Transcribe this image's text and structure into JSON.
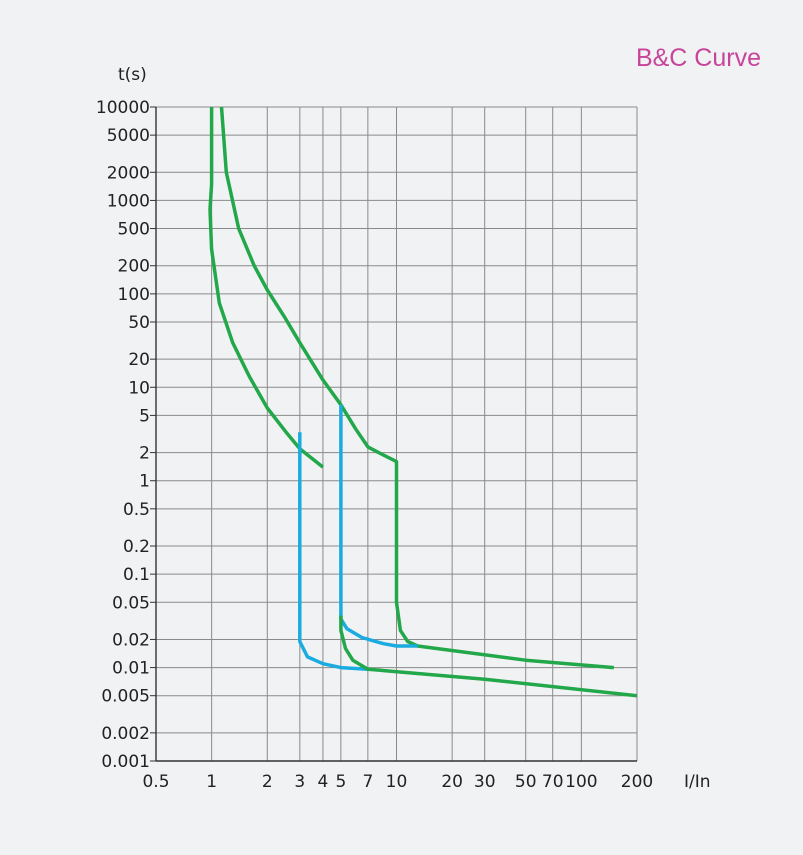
{
  "chart_data": {
    "type": "line",
    "title": "B&C Curve",
    "xlabel": "I/In",
    "ylabel": "t(s)",
    "x_scale": "log",
    "y_scale": "log",
    "xlim": [
      0.5,
      200
    ],
    "ylim": [
      0.001,
      10000
    ],
    "grid": true,
    "legend": "none",
    "x_ticks": [
      0.5,
      1,
      2,
      3,
      4,
      5,
      7,
      10,
      20,
      30,
      50,
      70,
      100,
      200
    ],
    "x_tick_labels": [
      "0.5",
      "1",
      "2",
      "3",
      "4",
      "5",
      "7",
      "10",
      "20",
      "30",
      "50",
      "70",
      "100",
      "200"
    ],
    "y_ticks": [
      10000,
      5000,
      2000,
      1000,
      500,
      200,
      100,
      50,
      20,
      10,
      5,
      2,
      1,
      0.5,
      0.2,
      0.1,
      0.05,
      0.02,
      0.01,
      0.005,
      0.002,
      0.001
    ],
    "y_tick_labels": [
      "10000",
      "5000",
      "2000",
      "1000",
      "500",
      "200",
      "100",
      "50",
      "20",
      "10",
      "5",
      "2",
      "1",
      "0.5",
      "0.2",
      "0.1",
      "0.05",
      "0.02",
      "0.01",
      "0.005",
      "0.002",
      "0.001"
    ],
    "series": [
      {
        "color": "#22a84a",
        "points": [
          [
            1.0,
            10000
          ],
          [
            1.0,
            1500
          ],
          [
            0.98,
            800
          ],
          [
            1.0,
            300
          ],
          [
            1.1,
            80
          ],
          [
            1.3,
            30
          ],
          [
            1.6,
            13
          ],
          [
            2.0,
            6
          ],
          [
            2.5,
            3.4
          ],
          [
            3.0,
            2.2
          ],
          [
            4.0,
            1.4
          ]
        ]
      },
      {
        "color": "#22a84a",
        "points": [
          [
            1.13,
            10000
          ],
          [
            1.2,
            2000
          ],
          [
            1.4,
            500
          ],
          [
            1.7,
            200
          ],
          [
            2.0,
            110
          ],
          [
            2.5,
            55
          ],
          [
            3.0,
            30
          ],
          [
            4.0,
            12
          ],
          [
            5.0,
            6.5
          ],
          [
            6.0,
            3.6
          ],
          [
            7.0,
            2.3
          ],
          [
            8.0,
            2.0
          ],
          [
            10.0,
            1.6
          ],
          [
            10.0,
            0.05
          ],
          [
            10.5,
            0.025
          ],
          [
            11.5,
            0.019
          ],
          [
            13.0,
            0.017
          ],
          [
            50.0,
            0.012
          ],
          [
            150.0,
            0.01
          ]
        ]
      },
      {
        "color": "#1aabe0",
        "points": [
          [
            3.0,
            3.3
          ],
          [
            3.0,
            0.019
          ],
          [
            3.3,
            0.013
          ],
          [
            4.0,
            0.011
          ],
          [
            5.0,
            0.01
          ],
          [
            7.0,
            0.0096
          ]
        ]
      },
      {
        "color": "#1aabe0",
        "points": [
          [
            5.0,
            6.5
          ],
          [
            5.0,
            0.033
          ],
          [
            5.4,
            0.026
          ],
          [
            6.5,
            0.021
          ],
          [
            8.5,
            0.018
          ],
          [
            10.0,
            0.017
          ],
          [
            13.0,
            0.017
          ]
        ]
      },
      {
        "color": "#22a84a",
        "points": [
          [
            5.0,
            0.036
          ],
          [
            5.0,
            0.025
          ],
          [
            5.3,
            0.016
          ],
          [
            5.8,
            0.012
          ],
          [
            7.0,
            0.0096
          ],
          [
            30.0,
            0.0075
          ],
          [
            200.0,
            0.005
          ]
        ]
      }
    ]
  }
}
